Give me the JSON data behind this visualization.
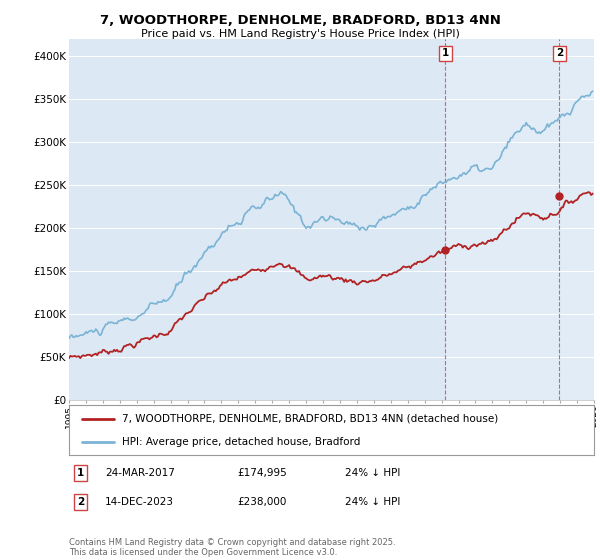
{
  "title": "7, WOODTHORPE, DENHOLME, BRADFORD, BD13 4NN",
  "subtitle": "Price paid vs. HM Land Registry's House Price Index (HPI)",
  "background_color": "#dce9f5",
  "ylim": [
    0,
    420000
  ],
  "yticks": [
    0,
    50000,
    100000,
    150000,
    200000,
    250000,
    300000,
    350000,
    400000
  ],
  "ytick_labels": [
    "£0",
    "£50K",
    "£100K",
    "£150K",
    "£200K",
    "£250K",
    "£300K",
    "£350K",
    "£400K"
  ],
  "legend_line1": "7, WOODTHORPE, DENHOLME, BRADFORD, BD13 4NN (detached house)",
  "legend_line2": "HPI: Average price, detached house, Bradford",
  "footnote": "Contains HM Land Registry data © Crown copyright and database right 2025.\nThis data is licensed under the Open Government Licence v3.0.",
  "sale1_date": "24-MAR-2017",
  "sale1_price": "£174,995",
  "sale1_hpi": "24% ↓ HPI",
  "sale2_date": "14-DEC-2023",
  "sale2_price": "£238,000",
  "sale2_hpi": "24% ↓ HPI",
  "hpi_color": "#7ab3d4",
  "price_color": "#b22222",
  "sale1_x": 2017.22,
  "sale2_x": 2023.96,
  "sale1_y": 174995,
  "sale2_y": 238000,
  "xmin": 1995,
  "xmax": 2026
}
